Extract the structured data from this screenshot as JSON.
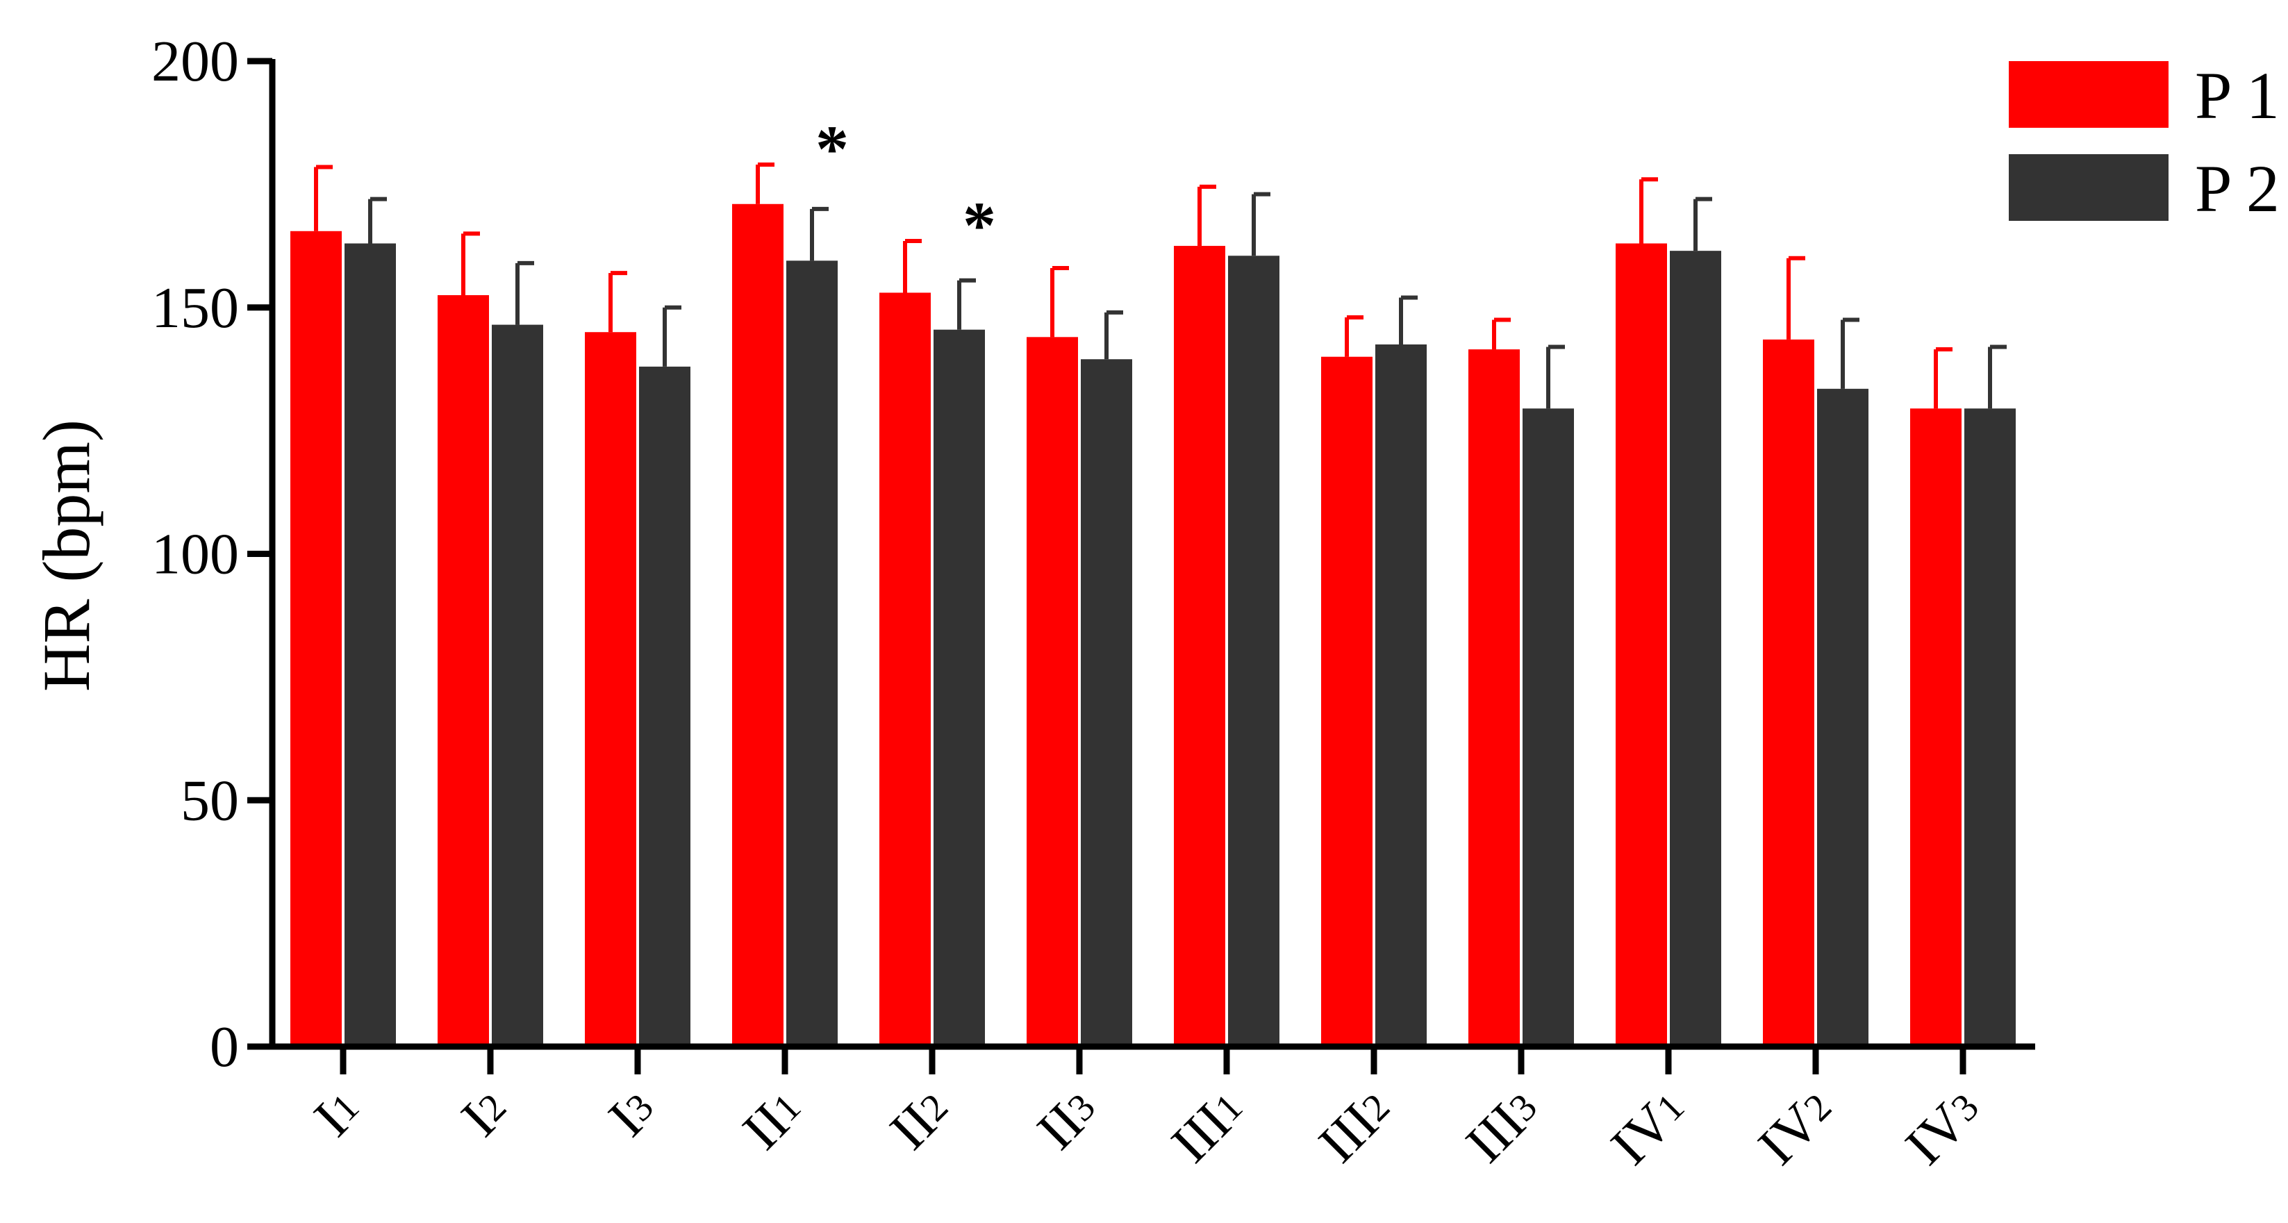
{
  "chart_data": {
    "type": "bar",
    "ylabel": "HR (bpm)",
    "ylim": [
      0,
      200
    ],
    "yticks": [
      "0",
      "50",
      "100",
      "150",
      "200"
    ],
    "categories": [
      {
        "main": "I",
        "sub": "1"
      },
      {
        "main": "I",
        "sub": "2"
      },
      {
        "main": "I",
        "sub": "3"
      },
      {
        "main": "II",
        "sub": "1"
      },
      {
        "main": "II",
        "sub": "2"
      },
      {
        "main": "II",
        "sub": "3"
      },
      {
        "main": "III",
        "sub": "1"
      },
      {
        "main": "III",
        "sub": "2"
      },
      {
        "main": "III",
        "sub": "3"
      },
      {
        "main": "IV",
        "sub": "1"
      },
      {
        "main": "IV",
        "sub": "2"
      },
      {
        "main": "IV",
        "sub": "3"
      }
    ],
    "series": [
      {
        "name": "P 1",
        "color": "#ff0000",
        "values": [
          165.5,
          152.5,
          145,
          171,
          153,
          144,
          162.5,
          140,
          141.5,
          163,
          143.5,
          129.5
        ],
        "errors": [
          13,
          12.5,
          12,
          8,
          10.5,
          14,
          12,
          8,
          6,
          13,
          16.5,
          12
        ]
      },
      {
        "name": "P 2",
        "color": "#333333",
        "values": [
          163,
          146.5,
          138,
          159.5,
          145.5,
          139.5,
          160.5,
          142.5,
          129.5,
          161.5,
          133.5,
          129.5
        ],
        "errors": [
          9,
          12.5,
          12,
          10.5,
          10,
          9.5,
          12.5,
          9.5,
          12.5,
          10.5,
          14,
          12.5
        ]
      }
    ],
    "annotations": [
      {
        "text": "*",
        "category_index": 3
      },
      {
        "text": "*",
        "category_index": 4
      }
    ],
    "legend": "top-right"
  }
}
